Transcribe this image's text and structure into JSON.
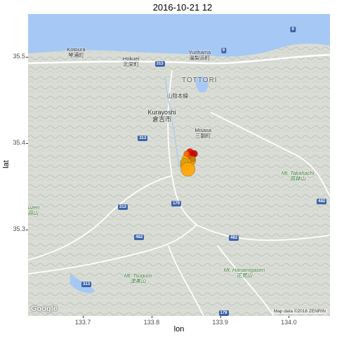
{
  "title": "2016-10-21 12",
  "chart_data": {
    "type": "scatter",
    "xlabel": "lon",
    "ylabel": "lat",
    "xlim": [
      133.62,
      134.06
    ],
    "ylim": [
      35.2,
      35.55
    ],
    "x_ticks": [
      133.7,
      133.8,
      133.9,
      134.0
    ],
    "x_tick_labels": [
      "133.7",
      "133.8",
      "133.9",
      "134.0"
    ],
    "y_ticks": [
      35.3,
      35.4,
      35.5
    ],
    "y_tick_labels": [
      "35.3",
      "35.4",
      "35.5"
    ],
    "grid": false,
    "points": [
      {
        "lon": 133.855,
        "lat": 35.38,
        "size": 9,
        "color": "#ff8c00"
      },
      {
        "lon": 133.85,
        "lat": 35.375,
        "size": 8,
        "color": "#f5a623"
      },
      {
        "lon": 133.852,
        "lat": 35.383,
        "size": 7,
        "color": "#f0b000"
      },
      {
        "lon": 133.848,
        "lat": 35.378,
        "size": 6,
        "color": "#d4a017"
      },
      {
        "lon": 133.858,
        "lat": 35.386,
        "size": 6,
        "color": "#ff4500"
      },
      {
        "lon": 133.856,
        "lat": 35.39,
        "size": 5,
        "color": "#e60000"
      },
      {
        "lon": 133.862,
        "lat": 35.388,
        "size": 5,
        "color": "#cc0000"
      },
      {
        "lon": 133.853,
        "lat": 35.37,
        "size": 10,
        "color": "#ffa500"
      },
      {
        "lon": 133.851,
        "lat": 35.388,
        "size": 4,
        "color": "#ff6600"
      },
      {
        "lon": 133.86,
        "lat": 35.382,
        "size": 4,
        "color": "#b8860b"
      }
    ]
  },
  "map": {
    "sea_color": "#a6c8f5",
    "land_color": "#dfe3dc",
    "labels": [
      {
        "text": "Kotoura\n琴浦町",
        "cls": "",
        "lon": 133.69,
        "lat": 35.505
      },
      {
        "text": "Hokuei\n北栄町",
        "cls": "",
        "lon": 133.77,
        "lat": 35.495
      },
      {
        "text": "Yurihama\n湯梨浜町",
        "cls": "",
        "lon": 133.87,
        "lat": 35.502
      },
      {
        "text": "TOTTORI",
        "cls": "big",
        "lon": 133.87,
        "lat": 35.473
      },
      {
        "text": "Kurayoshi\n倉吉市",
        "cls": "city",
        "lon": 133.815,
        "lat": 35.432
      },
      {
        "text": "Misasa\n三朝町",
        "cls": "",
        "lon": 133.875,
        "lat": 35.412
      },
      {
        "text": "山陰本線",
        "cls": "",
        "lon": 133.838,
        "lat": 35.455
      },
      {
        "text": "Mt. Takahachi\n高鉢山",
        "cls": "green",
        "lon": 134.013,
        "lat": 35.362
      },
      {
        "text": "Mt. Tsuguro\n津黒山",
        "cls": "green",
        "lon": 133.78,
        "lat": 35.243
      },
      {
        "text": "Mt. Hanamigasen\n花見山",
        "cls": "green",
        "lon": 133.935,
        "lat": 35.25
      },
      {
        "text": "ruzen\n蒜山",
        "cls": "green",
        "lon": 133.627,
        "lat": 35.322
      }
    ],
    "shields": [
      {
        "text": "313",
        "lon": 133.812,
        "lat": 35.492
      },
      {
        "text": "9",
        "lon": 133.905,
        "lat": 35.508
      },
      {
        "text": "9",
        "lon": 134.006,
        "lat": 35.532
      },
      {
        "text": "313",
        "lon": 133.787,
        "lat": 35.406
      },
      {
        "text": "313",
        "lon": 133.758,
        "lat": 35.326
      },
      {
        "text": "179",
        "lon": 133.836,
        "lat": 35.33
      },
      {
        "text": "482",
        "lon": 133.782,
        "lat": 35.291
      },
      {
        "text": "482",
        "lon": 133.92,
        "lat": 35.29
      },
      {
        "text": "482",
        "lon": 134.048,
        "lat": 35.333
      },
      {
        "text": "313",
        "lon": 133.705,
        "lat": 35.237
      },
      {
        "text": "179",
        "lon": 133.905,
        "lat": 35.203
      }
    ],
    "google": "Google",
    "attribution": "Map data ©2018 ZENRIN"
  }
}
